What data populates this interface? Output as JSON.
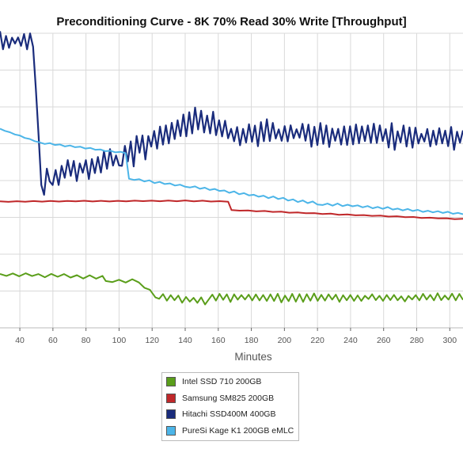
{
  "chart_data": {
    "type": "line",
    "title": "Preconditioning Curve - 8K 70% Read 30% Write [Throughput]",
    "xlabel": "Minutes",
    "ylabel": "",
    "xlim": [
      28,
      308
    ],
    "xticks": [
      40,
      60,
      80,
      100,
      120,
      140,
      160,
      180,
      200,
      220,
      240,
      260,
      280,
      300
    ],
    "ylim": [
      0,
      8
    ],
    "yticks": [
      0,
      1,
      2,
      3,
      4,
      5,
      6,
      7,
      8
    ],
    "yticklabels_visible": false,
    "grid": true,
    "legend_position": "bottom",
    "series": [
      {
        "name": "Intel SSD 710 200GB",
        "color": "#5a9e1a",
        "segments": [
          {
            "x0": 28,
            "x1": 90,
            "y0": 1.45,
            "y1": 1.38,
            "jitter": 0.05,
            "pitch": 4
          },
          {
            "x0": 90,
            "x1": 92,
            "y0": 1.38,
            "y1": 1.27,
            "jitter": 0,
            "pitch": 2
          },
          {
            "x0": 92,
            "x1": 112,
            "y0": 1.27,
            "y1": 1.27,
            "jitter": 0.05,
            "pitch": 4
          },
          {
            "x0": 112,
            "x1": 122,
            "y0": 1.27,
            "y1": 0.85,
            "jitter": 0.04,
            "pitch": 3
          },
          {
            "x0": 122,
            "x1": 152,
            "y0": 0.85,
            "y1": 0.72,
            "jitter": 0.09,
            "pitch": 2.4
          },
          {
            "x0": 152,
            "x1": 308,
            "y0": 0.82,
            "y1": 0.82,
            "jitter": 0.1,
            "pitch": 2.2
          }
        ]
      },
      {
        "name": "Samsung SM825 200GB",
        "color": "#c0282a",
        "segments": [
          {
            "x0": 28,
            "x1": 140,
            "y0": 3.43,
            "y1": 3.45,
            "jitter": 0.01,
            "pitch": 5
          },
          {
            "x0": 140,
            "x1": 166,
            "y0": 3.45,
            "y1": 3.43,
            "jitter": 0.01,
            "pitch": 5
          },
          {
            "x0": 166,
            "x1": 168,
            "y0": 3.43,
            "y1": 3.2,
            "jitter": 0,
            "pitch": 2
          },
          {
            "x0": 168,
            "x1": 308,
            "y0": 3.2,
            "y1": 2.95,
            "jitter": 0.01,
            "pitch": 5
          }
        ]
      },
      {
        "name": "Hitachi SSD400M 400GB",
        "color": "#1a2c7c",
        "segments": [
          {
            "x0": 28,
            "x1": 48,
            "y0": 7.8,
            "y1": 7.8,
            "jitter": 0.23,
            "pitch": 1.8
          },
          {
            "x0": 48,
            "x1": 53,
            "y0": 7.8,
            "y1": 3.9,
            "jitter": 0.02,
            "pitch": 1.5
          },
          {
            "x0": 53,
            "x1": 58,
            "y0": 3.9,
            "y1": 4.1,
            "jitter": 0.35,
            "pitch": 1.5
          },
          {
            "x0": 58,
            "x1": 100,
            "y0": 4.1,
            "y1": 4.6,
            "jitter": 0.3,
            "pitch": 1.8
          },
          {
            "x0": 100,
            "x1": 146,
            "y0": 4.6,
            "y1": 5.7,
            "jitter": 0.35,
            "pitch": 1.8
          },
          {
            "x0": 146,
            "x1": 175,
            "y0": 5.7,
            "y1": 5.2,
            "jitter": 0.3,
            "pitch": 1.8
          },
          {
            "x0": 175,
            "x1": 308,
            "y0": 5.3,
            "y1": 5.15,
            "jitter": 0.3,
            "pitch": 1.8
          }
        ]
      },
      {
        "name": "PureSi Kage K1 200GB eMLC",
        "color": "#4cb5e8",
        "segments": [
          {
            "x0": 28,
            "x1": 52,
            "y0": 5.4,
            "y1": 5.03,
            "jitter": 0.01,
            "pitch": 3
          },
          {
            "x0": 52,
            "x1": 104,
            "y0": 5.03,
            "y1": 4.75,
            "jitter": 0.02,
            "pitch": 3
          },
          {
            "x0": 104,
            "x1": 106,
            "y0": 4.75,
            "y1": 4.05,
            "jitter": 0,
            "pitch": 2
          },
          {
            "x0": 106,
            "x1": 140,
            "y0": 4.05,
            "y1": 3.85,
            "jitter": 0.03,
            "pitch": 3
          },
          {
            "x0": 140,
            "x1": 220,
            "y0": 3.85,
            "y1": 3.38,
            "jitter": 0.03,
            "pitch": 3
          },
          {
            "x0": 220,
            "x1": 308,
            "y0": 3.38,
            "y1": 3.1,
            "jitter": 0.03,
            "pitch": 3
          }
        ]
      }
    ]
  },
  "axis_style": {
    "grid_color": "#d9d9d9",
    "axis_color": "#bbbbbb",
    "tick_color": "#666666"
  }
}
